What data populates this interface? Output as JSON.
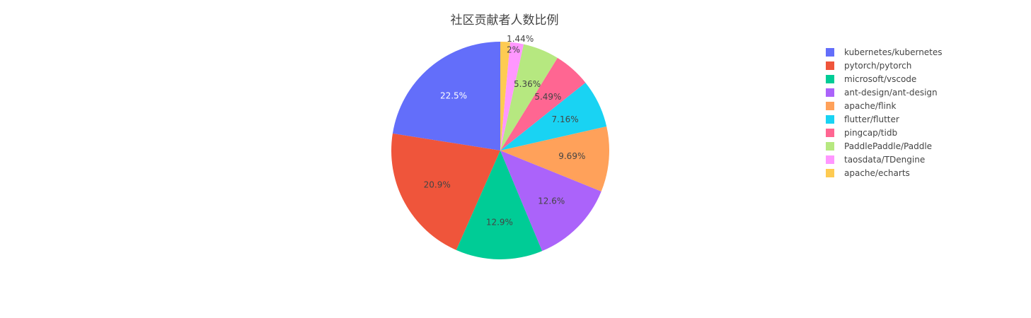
{
  "chart_data": {
    "type": "pie",
    "title": "社区贡献者人数比例",
    "labels": [
      "kubernetes/kubernetes",
      "pytorch/pytorch",
      "microsoft/vscode",
      "ant-design/ant-design",
      "apache/flink",
      "flutter/flutter",
      "pingcap/tidb",
      "PaddlePaddle/Paddle",
      "taosdata/TDengine",
      "apache/echarts"
    ],
    "values": [
      22.5,
      20.9,
      12.9,
      12.6,
      9.69,
      7.16,
      5.49,
      5.36,
      2,
      1.44
    ],
    "value_labels": [
      "22.5%",
      "20.9%",
      "12.9%",
      "12.6%",
      "9.69%",
      "7.16%",
      "5.49%",
      "5.36%",
      "2%",
      "1.44%"
    ],
    "colors": [
      "#636efa",
      "#EF553B",
      "#00cc96",
      "#ab63fa",
      "#FFA15A",
      "#19d3f3",
      "#FF6692",
      "#B6E880",
      "#FF97FF",
      "#FECB52"
    ],
    "label_colors": [
      "#ffffff",
      "#444444",
      "#444444",
      "#444444",
      "#444444",
      "#444444",
      "#444444",
      "#444444",
      "#444444",
      "#444444"
    ],
    "direction": "counterclockwise",
    "start": "top",
    "legend_position": "right"
  }
}
